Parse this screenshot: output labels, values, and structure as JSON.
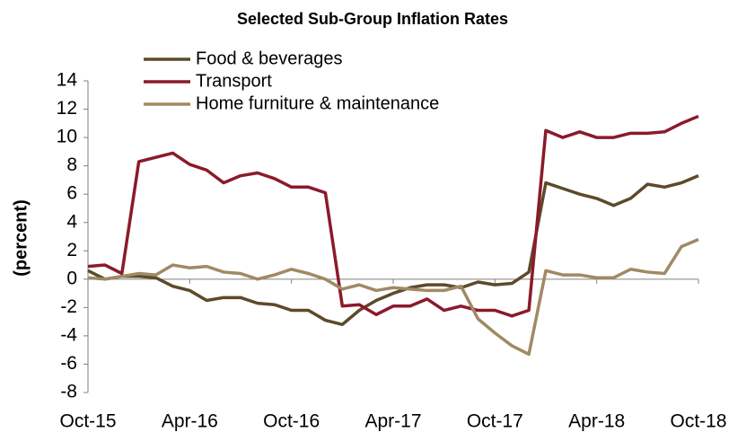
{
  "chart_data": {
    "type": "line",
    "title": "Selected Sub-Group Inflation Rates",
    "y_label": "(percent)",
    "categories": [
      "Oct-15",
      null,
      null,
      null,
      null,
      null,
      "Apr-16",
      null,
      null,
      null,
      null,
      null,
      "Oct-16",
      null,
      null,
      null,
      null,
      null,
      "Apr-17",
      null,
      null,
      null,
      null,
      null,
      "Oct-17",
      null,
      null,
      null,
      null,
      null,
      "Apr-18",
      null,
      null,
      null,
      null,
      null,
      "Oct-18"
    ],
    "series": [
      {
        "name": "Food & beverages",
        "color": "#5c4a2a",
        "values": [
          0.6,
          0.0,
          0.2,
          0.2,
          0.1,
          -0.5,
          -0.8,
          -1.5,
          -1.3,
          -1.3,
          -1.7,
          -1.8,
          -2.2,
          -2.2,
          -2.9,
          -3.2,
          -2.2,
          -1.5,
          -1.0,
          -0.6,
          -0.4,
          -0.4,
          -0.6,
          -0.2,
          -0.4,
          -0.3,
          0.5,
          6.8,
          6.4,
          6.0,
          5.7,
          5.2,
          5.7,
          6.7,
          6.5,
          6.8,
          7.3
        ]
      },
      {
        "name": "Transport",
        "color": "#8b1a2b",
        "values": [
          0.9,
          1.0,
          0.4,
          8.3,
          8.6,
          8.9,
          8.1,
          7.7,
          6.8,
          7.3,
          7.5,
          7.1,
          6.5,
          6.5,
          6.1,
          -1.9,
          -1.8,
          -2.5,
          -1.9,
          -1.9,
          -1.4,
          -2.2,
          -1.9,
          -2.2,
          -2.2,
          -2.6,
          -2.2,
          10.5,
          10.0,
          10.4,
          10.0,
          10.0,
          10.3,
          10.3,
          10.4,
          11.0,
          11.5
        ]
      },
      {
        "name": "Home furniture & maintenance",
        "color": "#a08a64",
        "values": [
          0.1,
          0.0,
          0.2,
          0.4,
          0.3,
          1.0,
          0.8,
          0.9,
          0.5,
          0.4,
          0.0,
          0.3,
          0.7,
          0.4,
          0.0,
          -0.7,
          -0.4,
          -0.8,
          -0.6,
          -0.7,
          -0.8,
          -0.8,
          -0.5,
          -2.8,
          -3.8,
          -4.7,
          -5.3,
          0.6,
          0.3,
          0.3,
          0.1,
          0.1,
          0.7,
          0.5,
          0.4,
          2.3,
          2.8
        ]
      }
    ],
    "ylim": [
      -8,
      14
    ],
    "yticks": [
      -8,
      -6,
      -4,
      -2,
      0,
      2,
      4,
      6,
      8,
      10,
      12,
      14
    ],
    "legend": "top-left"
  }
}
